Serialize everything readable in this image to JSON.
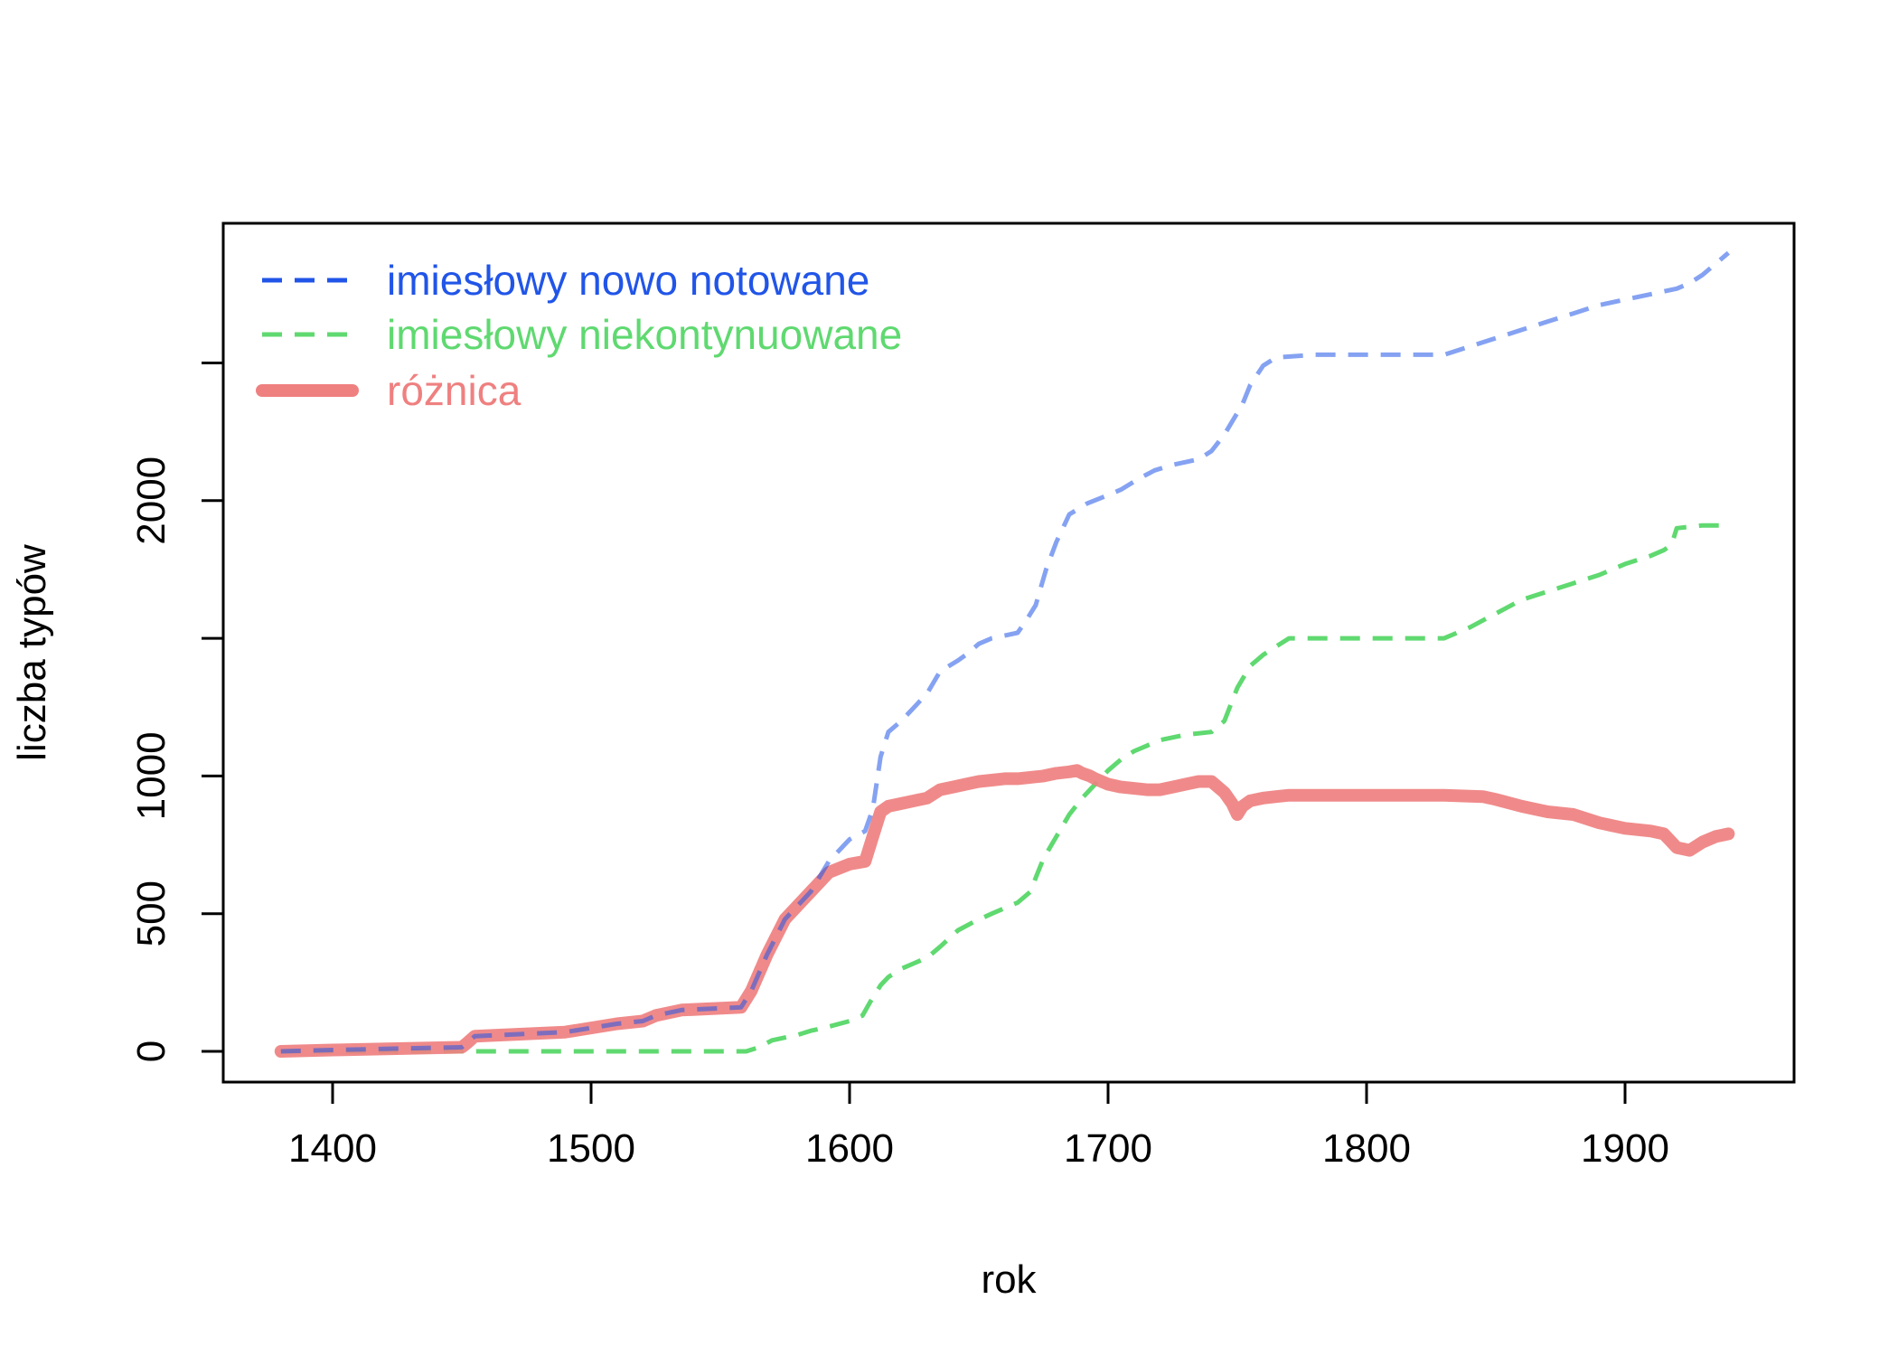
{
  "chart_data": {
    "type": "line",
    "title": "",
    "xlabel": "rok",
    "ylabel": "liczba typów",
    "xlim": [
      1380,
      1940
    ],
    "ylim": [
      0,
      2970
    ],
    "x_ticks": [
      1400,
      1500,
      1600,
      1700,
      1800,
      1900
    ],
    "y_ticks": [
      0,
      500,
      1000,
      1500,
      2000,
      2500
    ],
    "y_tick_labels": [
      "0",
      "500",
      "1000",
      "",
      "2000",
      ""
    ],
    "x_tick_labels": [
      "1400",
      "1500",
      "1600",
      "1700",
      "1800",
      "1900"
    ],
    "grid": false,
    "legend_position": "top-left",
    "series": [
      {
        "name": "imiesłowy nowo notowane",
        "color": "#2155e8",
        "style": "dashed",
        "x": [
          1380,
          1400,
          1450,
          1452,
          1455,
          1490,
          1510,
          1520,
          1525,
          1535,
          1558,
          1562,
          1568,
          1575,
          1585,
          1592,
          1600,
          1606,
          1609,
          1612,
          1615,
          1620,
          1625,
          1630,
          1635,
          1642,
          1645,
          1650,
          1655,
          1660,
          1665,
          1668,
          1672,
          1676,
          1680,
          1685,
          1692,
          1700,
          1705,
          1712,
          1718,
          1725,
          1735,
          1740,
          1745,
          1752,
          1755,
          1760,
          1765,
          1780,
          1800,
          1820,
          1830,
          1840,
          1850,
          1860,
          1870,
          1880,
          1890,
          1900,
          1910,
          1920,
          1925,
          1930,
          1935,
          1940
        ],
        "y": [
          0,
          5,
          15,
          30,
          55,
          70,
          100,
          110,
          130,
          150,
          160,
          220,
          350,
          480,
          580,
          690,
          770,
          800,
          880,
          1070,
          1160,
          1200,
          1250,
          1300,
          1380,
          1420,
          1440,
          1480,
          1500,
          1510,
          1520,
          1560,
          1620,
          1750,
          1850,
          1950,
          1990,
          2020,
          2040,
          2080,
          2110,
          2130,
          2150,
          2180,
          2240,
          2350,
          2420,
          2490,
          2520,
          2530,
          2530,
          2530,
          2530,
          2560,
          2590,
          2620,
          2650,
          2680,
          2710,
          2730,
          2750,
          2770,
          2790,
          2820,
          2860,
          2900
        ]
      },
      {
        "name": "imiesłowy niekontynuowane",
        "color": "#5fd970",
        "style": "dashed",
        "x": [
          1380,
          1400,
          1450,
          1500,
          1560,
          1565,
          1570,
          1580,
          1585,
          1590,
          1600,
          1605,
          1608,
          1612,
          1615,
          1620,
          1625,
          1630,
          1635,
          1642,
          1648,
          1655,
          1660,
          1665,
          1670,
          1672,
          1675,
          1680,
          1685,
          1690,
          1695,
          1700,
          1705,
          1710,
          1715,
          1720,
          1730,
          1740,
          1745,
          1750,
          1755,
          1760,
          1765,
          1770,
          1800,
          1830,
          1840,
          1850,
          1860,
          1870,
          1880,
          1890,
          1900,
          1910,
          1915,
          1918,
          1920,
          1930,
          1940
        ],
        "y": [
          0,
          0,
          0,
          0,
          0,
          15,
          40,
          60,
          75,
          85,
          110,
          130,
          180,
          240,
          270,
          300,
          320,
          340,
          380,
          440,
          470,
          500,
          520,
          540,
          580,
          630,
          700,
          780,
          860,
          920,
          970,
          1020,
          1060,
          1090,
          1110,
          1130,
          1150,
          1160,
          1200,
          1320,
          1400,
          1440,
          1470,
          1500,
          1500,
          1500,
          1540,
          1590,
          1640,
          1670,
          1700,
          1730,
          1770,
          1800,
          1820,
          1840,
          1900,
          1910,
          1910
        ]
      },
      {
        "name": "różnica",
        "color": "#ef8080",
        "style": "solid",
        "x": [
          1380,
          1400,
          1450,
          1452,
          1455,
          1490,
          1510,
          1520,
          1525,
          1535,
          1558,
          1562,
          1568,
          1575,
          1585,
          1592,
          1600,
          1606,
          1609,
          1612,
          1615,
          1620,
          1625,
          1630,
          1635,
          1640,
          1645,
          1650,
          1655,
          1660,
          1665,
          1670,
          1675,
          1680,
          1685,
          1688,
          1690,
          1693,
          1695,
          1700,
          1705,
          1710,
          1715,
          1720,
          1725,
          1730,
          1735,
          1740,
          1745,
          1748,
          1750,
          1752,
          1755,
          1760,
          1765,
          1770,
          1800,
          1830,
          1845,
          1850,
          1860,
          1870,
          1880,
          1890,
          1900,
          1910,
          1915,
          1918,
          1920,
          1925,
          1930,
          1935,
          1940
        ],
        "y": [
          0,
          5,
          15,
          30,
          55,
          70,
          100,
          110,
          130,
          150,
          160,
          220,
          350,
          480,
          580,
          650,
          680,
          690,
          780,
          870,
          890,
          900,
          910,
          920,
          950,
          960,
          970,
          980,
          985,
          990,
          990,
          995,
          1000,
          1010,
          1015,
          1020,
          1010,
          1000,
          990,
          970,
          960,
          955,
          950,
          950,
          960,
          970,
          980,
          980,
          940,
          900,
          860,
          890,
          910,
          920,
          925,
          930,
          930,
          930,
          925,
          915,
          890,
          870,
          860,
          830,
          810,
          800,
          790,
          760,
          740,
          730,
          760,
          780,
          790
        ]
      }
    ]
  }
}
